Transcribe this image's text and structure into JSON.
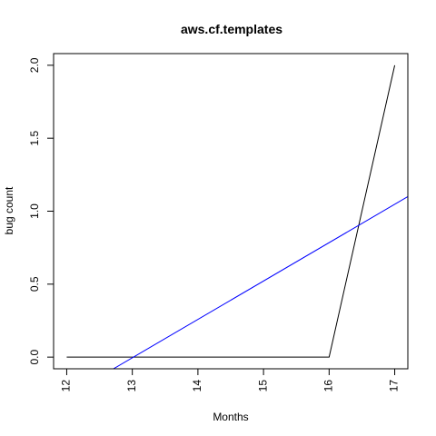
{
  "chart_data": {
    "type": "line",
    "title": "aws.cf.templates",
    "xlabel": "Months",
    "ylabel": "bug count",
    "xlim": [
      11.8,
      17.2
    ],
    "ylim": [
      -0.08,
      2.08
    ],
    "x_ticks": [
      12,
      13,
      14,
      15,
      16,
      17
    ],
    "x_tick_labels": [
      "12",
      "13",
      "14",
      "15",
      "16",
      "17"
    ],
    "y_ticks": [
      0.0,
      0.5,
      1.0,
      1.5,
      2.0
    ],
    "y_tick_labels": [
      "0.0",
      "0.5",
      "1.0",
      "1.5",
      "2.0"
    ],
    "grid": false,
    "legend": "none",
    "series": [
      {
        "color": "#000000",
        "x": [
          12,
          13,
          14,
          15,
          16,
          17
        ],
        "y": [
          0,
          0,
          0,
          0,
          0,
          2
        ]
      },
      {
        "color": "#0000ff",
        "x": [
          11.8,
          17.2
        ],
        "y": [
          -0.32,
          1.1
        ]
      }
    ]
  }
}
